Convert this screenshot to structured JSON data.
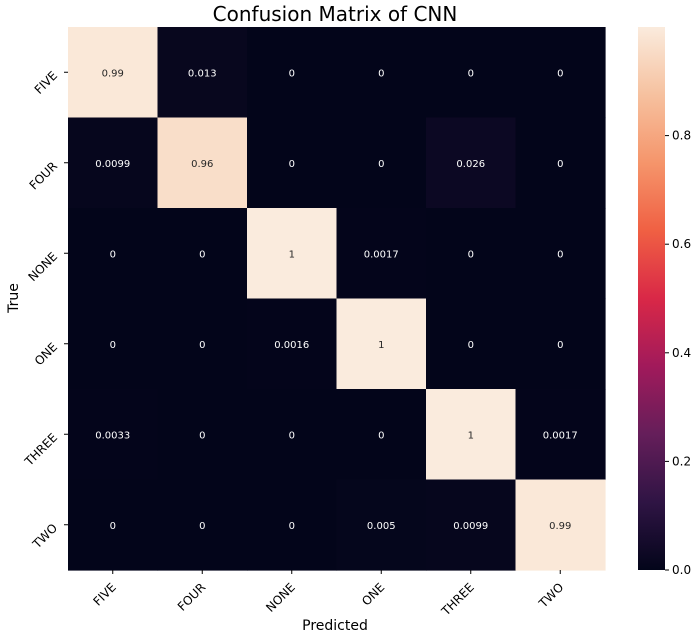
{
  "chart_data": {
    "type": "heatmap",
    "title": "Confusion Matrix of CNN",
    "xlabel": "Predicted",
    "ylabel": "True",
    "x_categories": [
      "FIVE",
      "FOUR",
      "NONE",
      "ONE",
      "THREE",
      "TWO"
    ],
    "y_categories": [
      "FIVE",
      "FOUR",
      "NONE",
      "ONE",
      "THREE",
      "TWO"
    ],
    "values": [
      [
        0.99,
        0.013,
        0,
        0,
        0,
        0
      ],
      [
        0.0099,
        0.96,
        0,
        0,
        0.026,
        0
      ],
      [
        0,
        0,
        1,
        0.0017,
        0,
        0
      ],
      [
        0,
        0,
        0.0016,
        1,
        0,
        0
      ],
      [
        0.0033,
        0,
        0,
        0,
        1,
        0.0017
      ],
      [
        0,
        0,
        0,
        0.005,
        0.0099,
        0.99
      ]
    ],
    "cell_labels": [
      [
        "0.99",
        "0.013",
        "0",
        "0",
        "0",
        "0"
      ],
      [
        "0.0099",
        "0.96",
        "0",
        "0",
        "0.026",
        "0"
      ],
      [
        "0",
        "0",
        "1",
        "0.0017",
        "0",
        "0"
      ],
      [
        "0",
        "0",
        "0.0016",
        "1",
        "0",
        "0"
      ],
      [
        "0.0033",
        "0",
        "0",
        "0",
        "1",
        "0.0017"
      ],
      [
        "0",
        "0",
        "0",
        "0.005",
        "0.0099",
        "0.99"
      ]
    ],
    "colorbar": {
      "range": [
        0,
        1
      ],
      "ticks": [
        0.0,
        0.2,
        0.4,
        0.6,
        0.8
      ],
      "tick_labels": [
        "0.0",
        "0.2",
        "0.4",
        "0.6",
        "0.8"
      ]
    },
    "colormap": [
      "#03051a",
      "#2f1444",
      "#651e5a",
      "#a11a5b",
      "#d92847",
      "#f06043",
      "#f5956b",
      "#f6c19f",
      "#faebdd"
    ],
    "grid": false
  }
}
